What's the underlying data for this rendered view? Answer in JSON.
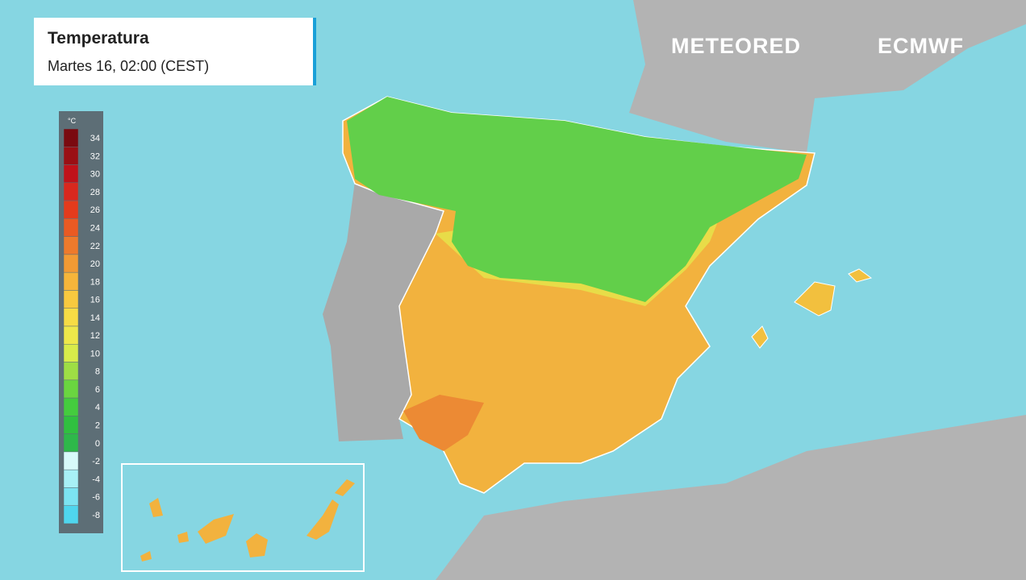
{
  "header": {
    "title": "Temperatura",
    "subtitle": "Martes 16, 02:00 (CEST)"
  },
  "logos": {
    "left": "METEORED",
    "right": "ECMWF"
  },
  "legend": {
    "unit": "°C",
    "steps": [
      {
        "value": 34,
        "color": "#7a0a10"
      },
      {
        "value": 32,
        "color": "#9a0f14"
      },
      {
        "value": 30,
        "color": "#c0121a"
      },
      {
        "value": 28,
        "color": "#d9281e"
      },
      {
        "value": 26,
        "color": "#e43b1c"
      },
      {
        "value": 24,
        "color": "#ea5a23"
      },
      {
        "value": 22,
        "color": "#ee7a2c"
      },
      {
        "value": 20,
        "color": "#f29a34"
      },
      {
        "value": 18,
        "color": "#f6b53a"
      },
      {
        "value": 16,
        "color": "#f8c93f"
      },
      {
        "value": 14,
        "color": "#f7dc45"
      },
      {
        "value": 12,
        "color": "#eee84a"
      },
      {
        "value": 10,
        "color": "#d8ec4a"
      },
      {
        "value": 8,
        "color": "#9ede45"
      },
      {
        "value": 6,
        "color": "#6ad640"
      },
      {
        "value": 4,
        "color": "#44cc3e"
      },
      {
        "value": 2,
        "color": "#30c040"
      },
      {
        "value": 0,
        "color": "#2eb84a"
      },
      {
        "value": -2,
        "color": "#d8fafa"
      },
      {
        "value": -4,
        "color": "#a8f0f6"
      },
      {
        "value": -6,
        "color": "#7ce4f2"
      },
      {
        "value": -8,
        "color": "#4fd6ee"
      }
    ]
  }
}
